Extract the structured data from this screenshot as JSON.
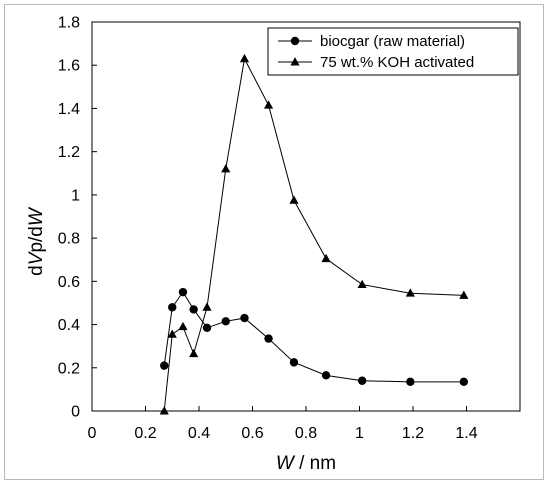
{
  "chart_data": {
    "type": "line",
    "xlabel_parts": [
      {
        "text": "W",
        "italic": true
      },
      {
        "text": " / nm",
        "italic": false
      }
    ],
    "ylabel_parts": [
      {
        "text": "d",
        "italic": false
      },
      {
        "text": "V",
        "italic": true
      },
      {
        "text": "p/d",
        "italic": false
      },
      {
        "text": "W",
        "italic": true
      }
    ],
    "xlim": [
      0,
      1.6
    ],
    "ylim": [
      0,
      1.8
    ],
    "xticks": [
      0,
      0.2,
      0.4,
      0.6,
      0.8,
      1,
      1.2,
      1.4
    ],
    "xtick_labels": [
      "0",
      "0.2",
      "0.4",
      "0.6",
      "0.8",
      "1",
      "1.2",
      "1.4"
    ],
    "yticks": [
      0,
      0.2,
      0.4,
      0.6,
      0.8,
      1,
      1.2,
      1.4,
      1.6,
      1.8
    ],
    "ytick_labels": [
      "0",
      "0.2",
      "0.4",
      "0.6",
      "0.8",
      "1",
      "1.2",
      "1.4",
      "1.6",
      "1.8"
    ],
    "grid": false,
    "legend_position": "top-right",
    "series": [
      {
        "name": "biocgar (raw material)",
        "marker": "circle",
        "color": "#000000",
        "x": [
          0.27,
          0.3,
          0.34,
          0.38,
          0.43,
          0.5,
          0.57,
          0.66,
          0.755,
          0.875,
          1.01,
          1.19,
          1.39
        ],
        "y": [
          0.21,
          0.48,
          0.55,
          0.47,
          0.385,
          0.415,
          0.43,
          0.335,
          0.225,
          0.165,
          0.14,
          0.135,
          0.135
        ]
      },
      {
        "name": "75 wt.% KOH activated",
        "marker": "triangle",
        "color": "#000000",
        "x": [
          0.27,
          0.3,
          0.34,
          0.38,
          0.43,
          0.5,
          0.57,
          0.66,
          0.755,
          0.875,
          1.01,
          1.19,
          1.39
        ],
        "y": [
          0.0,
          0.355,
          0.39,
          0.265,
          0.48,
          1.12,
          1.63,
          1.415,
          0.975,
          0.705,
          0.585,
          0.545,
          0.535
        ]
      }
    ]
  }
}
